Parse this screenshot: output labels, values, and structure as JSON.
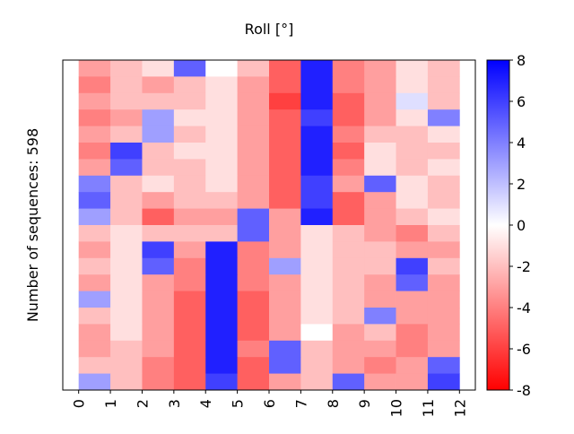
{
  "chart_data": {
    "type": "heatmap",
    "title": "Roll [°]",
    "ylabel": "Number of sequences: 598",
    "xticks": [
      0,
      1,
      2,
      3,
      4,
      5,
      6,
      7,
      8,
      9,
      10,
      11,
      12
    ],
    "xlim": [
      -0.5,
      12.5
    ],
    "values": [
      [
        -3,
        -2,
        -1,
        5,
        0,
        -2,
        -5,
        7,
        -4,
        -3,
        -1,
        -2
      ],
      [
        -4,
        -2,
        -3,
        -2,
        -1,
        -3,
        -5,
        7,
        -4,
        -3,
        -1,
        -2
      ],
      [
        -3,
        -2,
        -2,
        -2,
        -1,
        -3,
        -6,
        7,
        -5,
        -3,
        1,
        -2
      ],
      [
        -4,
        -3,
        3,
        -1,
        -1,
        -3,
        -5,
        6,
        -5,
        -3,
        -1,
        4
      ],
      [
        -3,
        -2,
        3,
        -2,
        -1,
        -3,
        -5,
        7,
        -4,
        -2,
        -2,
        -1
      ],
      [
        -4,
        6,
        -2,
        -1,
        -1,
        -3,
        -5,
        7,
        -5,
        -1,
        -2,
        -2
      ],
      [
        -3,
        5,
        -2,
        -2,
        -1,
        -3,
        -5,
        7,
        -4,
        -1,
        -2,
        -1
      ],
      [
        4,
        -2,
        -1,
        -2,
        -1,
        -3,
        -5,
        6,
        -3,
        5,
        -1,
        -2
      ],
      [
        5,
        -2,
        -3,
        -2,
        -2,
        -3,
        -5,
        6,
        -5,
        -3,
        -1,
        -2
      ],
      [
        3,
        -2,
        -5,
        -3,
        -3,
        5,
        -3,
        7,
        -5,
        -3,
        -2,
        -1
      ],
      [
        -2,
        -1,
        -2,
        -2,
        -2,
        5,
        -3,
        -1,
        -2,
        -3,
        -4,
        -2
      ],
      [
        -3,
        -1,
        6,
        -3,
        7,
        -4,
        -3,
        -1,
        -2,
        -2,
        -3,
        -3
      ],
      [
        -2,
        -1,
        5,
        -4,
        7,
        -4,
        3,
        -1,
        -2,
        -2,
        6,
        -2
      ],
      [
        -3,
        -1,
        -3,
        -4,
        7,
        -4,
        -3,
        -1,
        -2,
        -3,
        5,
        -3
      ],
      [
        3,
        -1,
        -3,
        -5,
        7,
        -5,
        -3,
        -1,
        -2,
        -3,
        -3,
        -3
      ],
      [
        -2,
        -1,
        -3,
        -5,
        7,
        -5,
        -3,
        -1,
        -2,
        4,
        -3,
        -3
      ],
      [
        -3,
        -1,
        -3,
        -5,
        7,
        -5,
        -3,
        0,
        -3,
        -2,
        -4,
        -3
      ],
      [
        -3,
        -2,
        -3,
        -5,
        7,
        -4,
        5,
        -2,
        -3,
        -3,
        -4,
        -3
      ],
      [
        -2,
        -2,
        -4,
        -5,
        7,
        -5,
        5,
        -2,
        -3,
        -4,
        -3,
        5
      ],
      [
        3,
        -2,
        -4,
        -5,
        6,
        -5,
        -3,
        -2,
        5,
        -3,
        -3,
        6
      ]
    ],
    "clim": [
      -8,
      8
    ],
    "cticks": [
      -8,
      -6,
      -4,
      -2,
      0,
      2,
      4,
      6,
      8
    ],
    "colormap": [
      "#ff0000",
      "#ffffff",
      "#0000ff"
    ]
  }
}
